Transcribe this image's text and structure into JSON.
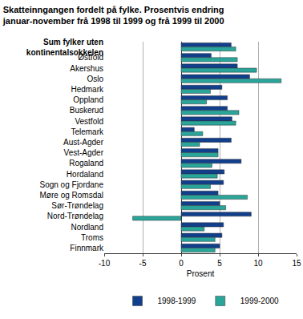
{
  "chart_data": {
    "type": "bar",
    "orientation": "horizontal",
    "title": "Skatteinngangen fordelt på fylke. Prosentvis endring\njanuar-november frå 1998 til 1999 og frå 1999 til 2000",
    "x_label": "Prosent",
    "categories": [
      "Sum fylker uten\nkontinentalsokkelen",
      "Østfold",
      "Akershus",
      "Oslo",
      "Hedmark",
      "Oppland",
      "Buskerud",
      "Vestfold",
      "Telemark",
      "Aust-Agder",
      "Vest-Agder",
      "Rogaland",
      "Hordaland",
      "Sogn og Fjordane",
      "Møre og Romsdal",
      "Sør-Trøndelag",
      "Nord-Trøndelag",
      "Nordland",
      "Troms",
      "Finnmark"
    ],
    "series": [
      {
        "name": "1998-1999",
        "color": "#123f8c",
        "values": [
          6.5,
          3.9,
          7.3,
          8.9,
          5.3,
          6.0,
          6.0,
          6.6,
          1.7,
          6.5,
          4.8,
          7.8,
          5.6,
          5.5,
          4.8,
          5.0,
          9.1,
          5.5,
          5.3,
          5.0
        ]
      },
      {
        "name": "1999-2000",
        "color": "#2aa59a",
        "values": [
          7.1,
          7.3,
          9.8,
          13.0,
          3.8,
          3.3,
          7.5,
          7.1,
          2.8,
          2.4,
          4.8,
          4.0,
          4.7,
          3.8,
          8.6,
          5.8,
          -6.3,
          3.0,
          4.4,
          4.4
        ]
      }
    ],
    "xlim": [
      -10,
      15
    ],
    "xticks": [
      -10,
      -5,
      0,
      5,
      10,
      15
    ],
    "grid": true,
    "legend": "bottom"
  }
}
